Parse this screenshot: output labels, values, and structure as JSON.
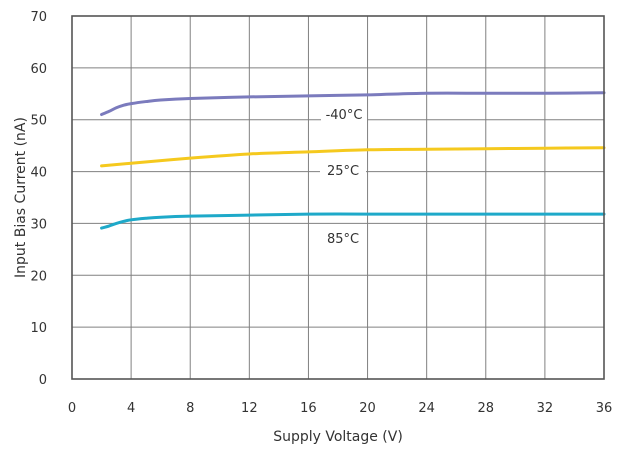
{
  "chart_data": {
    "type": "line",
    "title": "",
    "xlabel": "Supply Voltage (V)",
    "ylabel": "Input Bias Current (nA)",
    "xlim": [
      0,
      36
    ],
    "ylim": [
      0,
      70
    ],
    "xticks": [
      0,
      4,
      8,
      12,
      16,
      20,
      24,
      28,
      32,
      36
    ],
    "yticks": [
      0,
      10,
      20,
      30,
      40,
      50,
      60,
      70
    ],
    "xtick_labels": [
      "0",
      "4",
      "8",
      "12",
      "16",
      "20",
      "24",
      "28",
      "32",
      "36"
    ],
    "ytick_labels": [
      "0",
      "10",
      "20",
      "30",
      "40",
      "50",
      "60",
      "70"
    ],
    "grid": true,
    "legend": "none",
    "series": [
      {
        "name": "-40°C",
        "color": "#7b7bbd",
        "x": [
          2,
          2.5,
          3,
          3.5,
          4,
          5,
          6,
          8,
          12,
          16,
          20,
          24,
          28,
          32,
          36
        ],
        "y": [
          51,
          51.6,
          52.3,
          52.8,
          53.1,
          53.5,
          53.8,
          54.1,
          54.4,
          54.6,
          54.8,
          55.1,
          55.1,
          55.1,
          55.2
        ]
      },
      {
        "name": "25°C",
        "color": "#f5c91e",
        "x": [
          2,
          4,
          8,
          12,
          16,
          20,
          24,
          28,
          32,
          36
        ],
        "y": [
          41.1,
          41.6,
          42.6,
          43.4,
          43.8,
          44.2,
          44.3,
          44.4,
          44.5,
          44.6
        ]
      },
      {
        "name": "85°C",
        "color": "#1ea9c9",
        "x": [
          2,
          2.5,
          3,
          3.5,
          4,
          5,
          6,
          8,
          12,
          16,
          20,
          24,
          28,
          32,
          36
        ],
        "y": [
          29.1,
          29.5,
          30.0,
          30.4,
          30.7,
          31.0,
          31.2,
          31.4,
          31.6,
          31.8,
          31.8,
          31.8,
          31.8,
          31.8,
          31.8
        ]
      }
    ]
  }
}
